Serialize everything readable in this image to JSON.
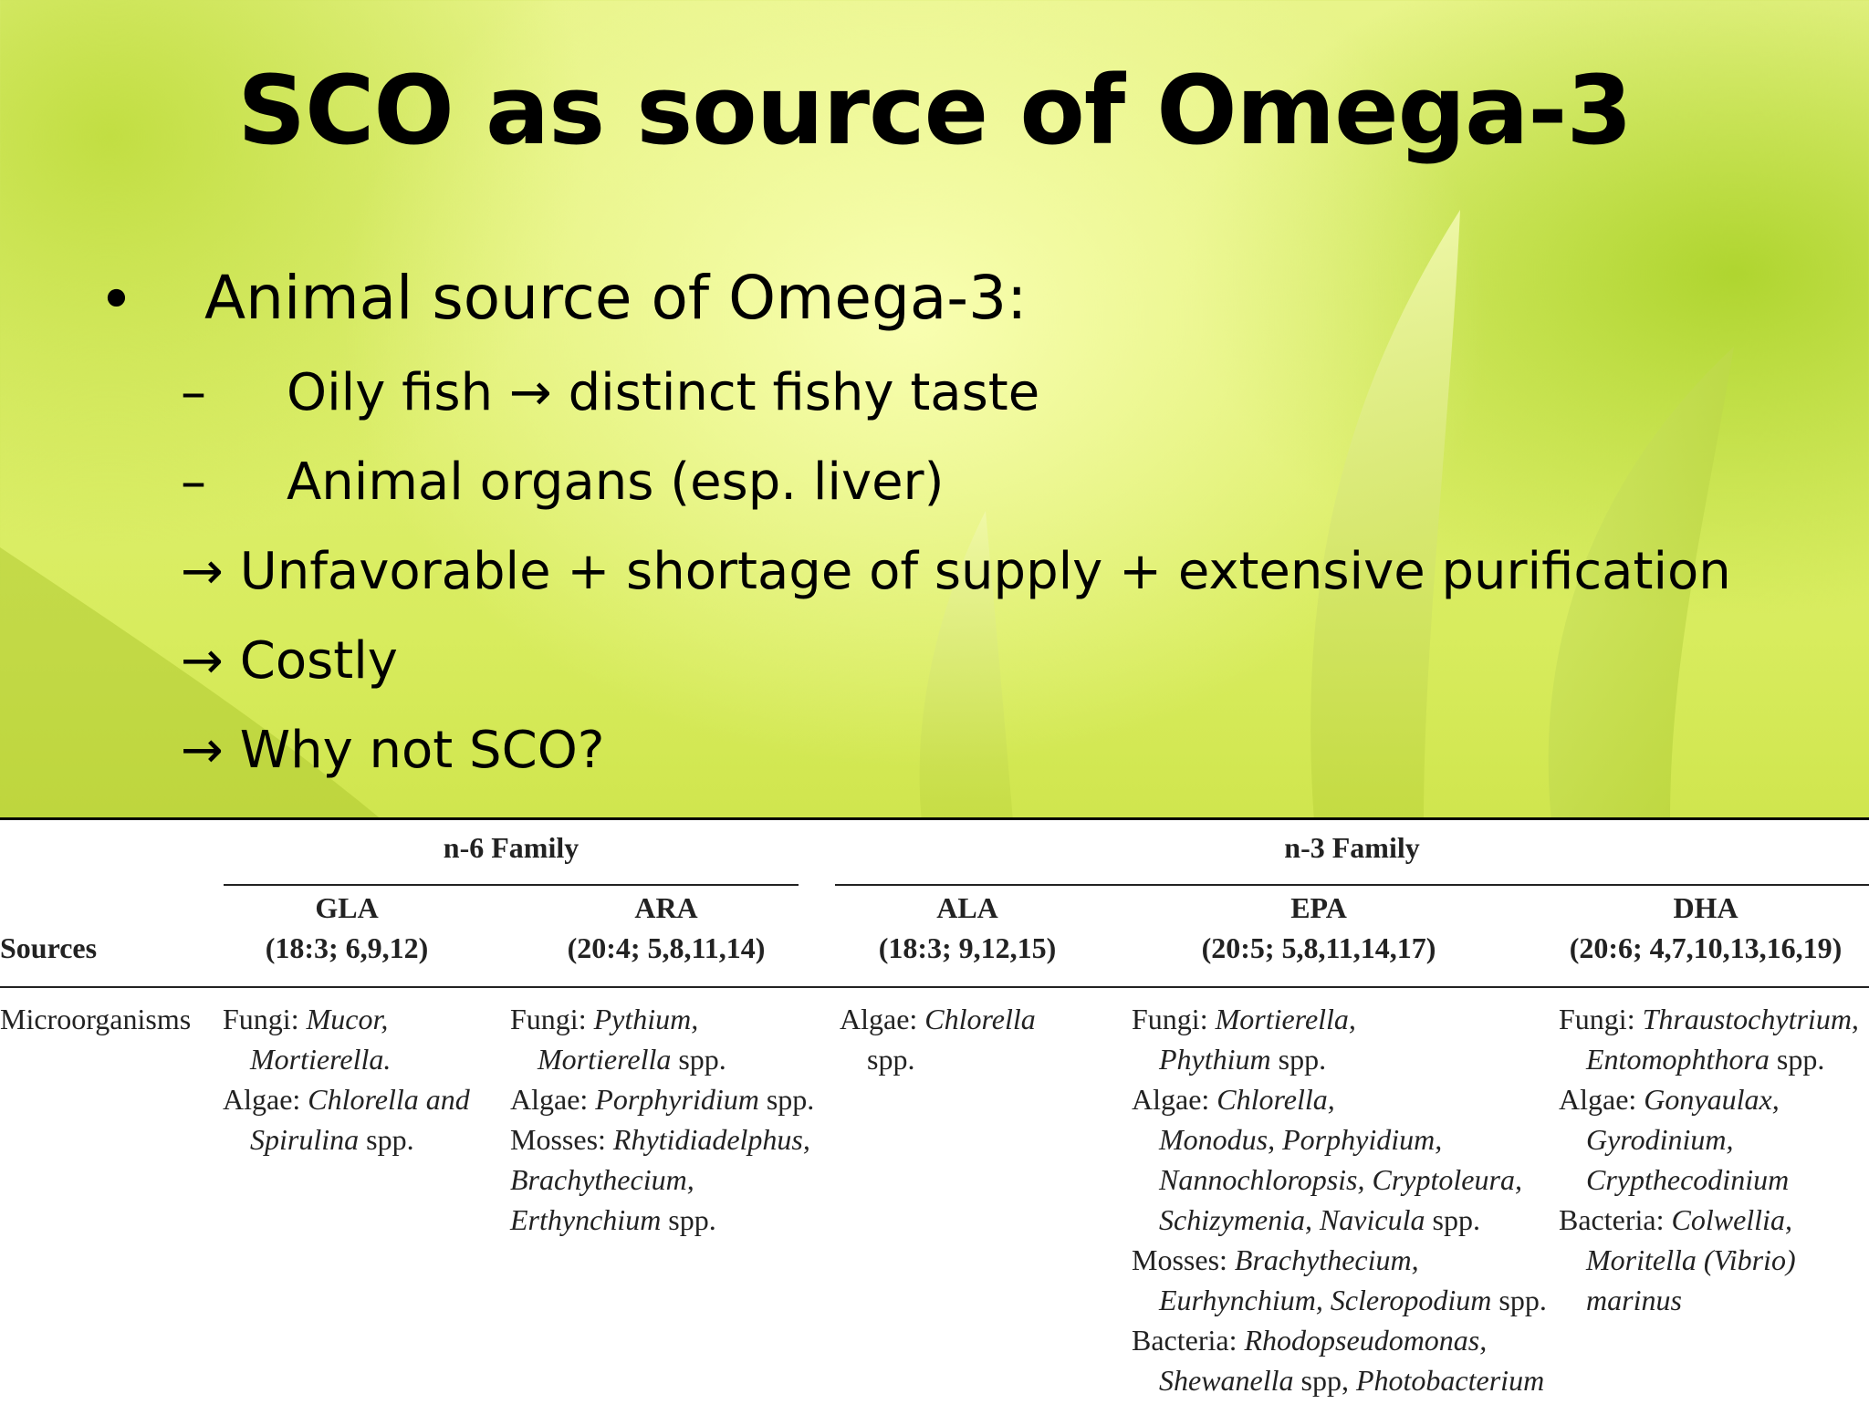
{
  "slide": {
    "title": "SCO as source of Omega-3",
    "bullet_marker": "•",
    "bullet_main": "Animal source of Omega-3:",
    "sub_marker": "–",
    "sub_items": [
      "Oily fish → distinct fishy taste",
      "Animal organs (esp. liver)"
    ],
    "arrow_items": [
      "→ Unfavorable + shortage of supply + extensive purification",
      "→ Costly",
      "→ Why not SCO?"
    ]
  },
  "table": {
    "family_n6": "n-6 Family",
    "family_n3": "n-3 Family",
    "sources_header": "Sources",
    "columns": [
      {
        "name": "GLA",
        "formula": "(18:3; 6,9,12)"
      },
      {
        "name": "ARA",
        "formula": "(20:4; 5,8,11,14)"
      },
      {
        "name": "ALA",
        "formula": "(18:3; 9,12,15)"
      },
      {
        "name": "EPA",
        "formula": "(20:5; 5,8,11,14,17)"
      },
      {
        "name": "DHA",
        "formula": "(20:6; 4,7,10,13,16,19)"
      }
    ],
    "row_label": "Microorganisms",
    "gla": {
      "l1a": "Fungi: ",
      "l1b": "Mucor,",
      "l2": "Mortierella.",
      "l3a": "Algae: ",
      "l3b": "Chlorella and",
      "l4a": "Spirulina",
      "l4b": " spp."
    },
    "ara": {
      "l1a": "Fungi: ",
      "l1b": "Pythium,",
      "l2a": "Mortierella",
      "l2b": " spp.",
      "l3a": "Algae: ",
      "l3b": "Porphyridium",
      "l3c": " spp.",
      "l4a": "Mosses: ",
      "l4b": "Rhytidiadelphus,",
      "l5": "Brachythecium,",
      "l6a": "Erthynchium",
      "l6b": " spp."
    },
    "ala": {
      "l1a": "Algae: ",
      "l1b": "Chlorella",
      "l2": "spp."
    },
    "epa": {
      "l1a": "Fungi: ",
      "l1b": "Mortierella,",
      "l2a": "Phythium",
      "l2b": " spp.",
      "l3a": "Algae: ",
      "l3b": "Chlorella,",
      "l4": "Monodus, Porphyidium,",
      "l5": "Nannochloropsis, Cryptoleura,",
      "l6a": "Schizymenia, Navicula",
      "l6b": " spp.",
      "l7a": "Mosses: ",
      "l7b": "Brachythecium,",
      "l8a": "Eurhynchium, Scleropodium",
      "l8b": " spp.",
      "l9a": "Bacteria: ",
      "l9b": "Rhodopseudomonas,",
      "l10a": "Shewanella",
      "l10b": " spp, ",
      "l10c": "Photobacterium"
    },
    "dha": {
      "l1a": "Fungi: ",
      "l1b": "Thraustochytrium,",
      "l2a": "Entomophthora",
      "l2b": " spp.",
      "l3a": "Algae: ",
      "l3b": "Gonyaulax,",
      "l4": "Gyrodinium,",
      "l5": "Crypthecodinium",
      "l6a": "Bacteria: ",
      "l6b": "Colwellia,",
      "l7": "Moritella (Vibrio)",
      "l8": "marinus"
    }
  }
}
